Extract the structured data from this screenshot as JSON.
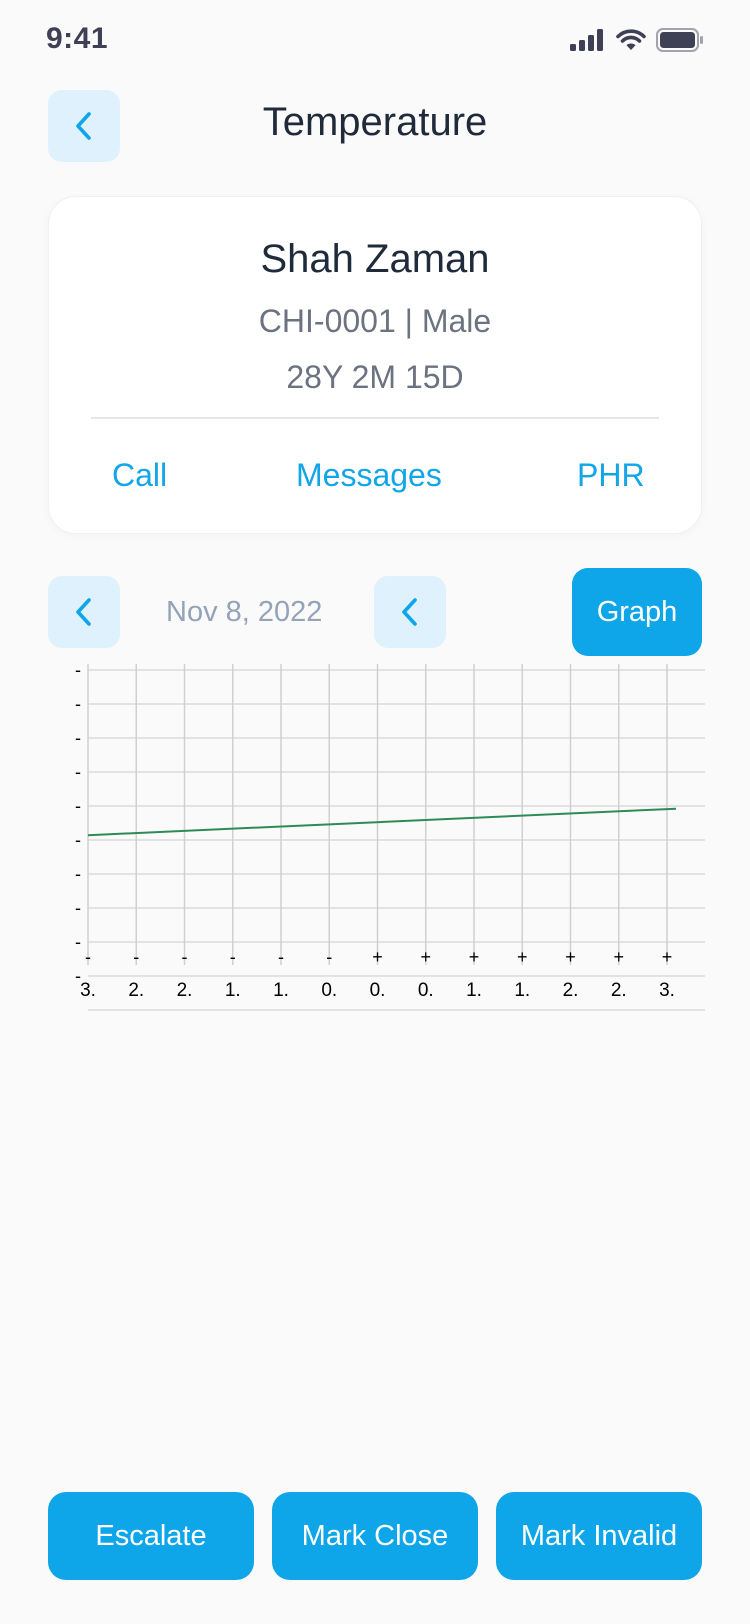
{
  "status_bar": {
    "time": "9:41"
  },
  "header": {
    "title": "Temperature"
  },
  "patient": {
    "name": "Shah Zaman",
    "meta": "CHI-0001 | Male",
    "age": "28Y 2M 15D"
  },
  "actions": {
    "call": "Call",
    "messages": "Messages",
    "phr": "PHR"
  },
  "date_nav": {
    "date": "Nov 8, 2022",
    "graph_label": "Graph"
  },
  "chart_data": {
    "type": "line",
    "x_tick_labels": [
      "-\n3.",
      "-\n2.",
      "-\n2.",
      "-\n1.",
      "-\n1.",
      "-\n0.",
      "+\n0.",
      "+\n0.",
      "+\n1.",
      "+\n1.",
      "+\n2.",
      "+\n2.",
      "+\n3."
    ],
    "y_tick_labels": [
      "-",
      "-",
      "-",
      "-",
      "-",
      "-",
      "-",
      "-",
      "-",
      "-"
    ],
    "series": [
      {
        "values": [
          0.44,
          0.53
        ],
        "color": "#2e8b57"
      }
    ],
    "grid": true
  },
  "footer": {
    "escalate": "Escalate",
    "mark_close": "Mark Close",
    "mark_invalid": "Mark Invalid"
  },
  "colors": {
    "accent": "#0ea5e9",
    "accent_light": "#dff1fc",
    "line": "#2e8b57"
  }
}
